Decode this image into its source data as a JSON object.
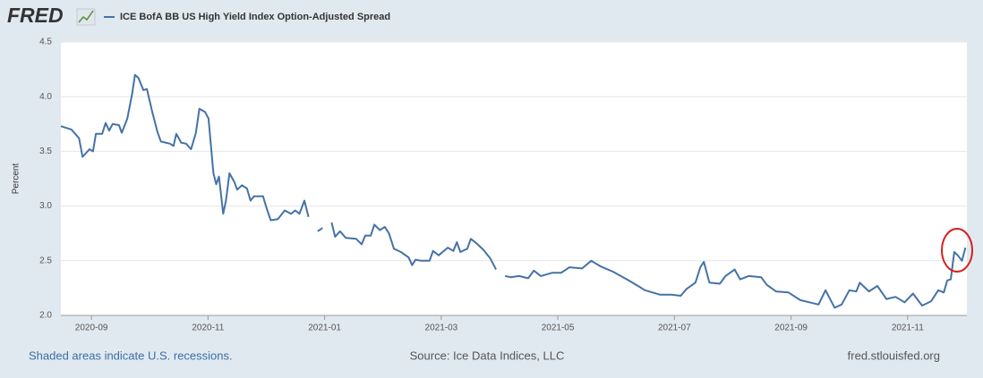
{
  "logo": "FRED",
  "footer": {
    "left": "Shaded areas indicate U.S. recessions.",
    "center": "Source: Ice Data Indices, LLC",
    "right": "fred.stlouisfed.org"
  },
  "chart_data": {
    "type": "line",
    "ylabel": "Percent",
    "xlim": [
      2020.623,
      2021.918
    ],
    "xticks": [
      {
        "value": 2020.6667,
        "label": "2020-09"
      },
      {
        "value": 2020.8333,
        "label": "2020-11"
      },
      {
        "value": 2021.0,
        "label": "2021-01"
      },
      {
        "value": 2021.1667,
        "label": "2021-03"
      },
      {
        "value": 2021.3333,
        "label": "2021-05"
      },
      {
        "value": 2021.5,
        "label": "2021-07"
      },
      {
        "value": 2021.6667,
        "label": "2021-09"
      },
      {
        "value": 2021.8333,
        "label": "2021-11"
      }
    ],
    "ylim": [
      2,
      4.5
    ],
    "yticks": [
      {
        "value": 2,
        "label": "2.0"
      },
      2.5,
      {
        "value": 3,
        "label": "3.0"
      },
      3.5,
      {
        "value": 4,
        "label": "4.0"
      },
      4.5
    ],
    "grid": true,
    "x": [
      2020.623,
      2020.638,
      2020.649,
      2020.654,
      2020.664,
      2020.669,
      2020.673,
      2020.682,
      2020.687,
      2020.692,
      2020.697,
      2020.706,
      2020.71,
      2020.718,
      2020.725,
      2020.729,
      2020.734,
      2020.741,
      2020.746,
      2020.754,
      2020.761,
      2020.766,
      2020.779,
      2020.784,
      2020.788,
      2020.795,
      2020.802,
      2020.809,
      2020.816,
      2020.821,
      2020.829,
      2020.834,
      2020.841,
      2020.845,
      2020.849,
      2020.855,
      2020.859,
      2020.864,
      2020.871,
      2020.875,
      2020.882,
      2020.889,
      2020.894,
      2020.899,
      2020.912,
      2020.917,
      2020.923,
      2020.933,
      2020.943,
      2020.952,
      2020.958,
      2020.964,
      2020.971,
      2020.977,
      null,
      2020.99,
      2020.997,
      null,
      2021.01,
      2021.015,
      2021.022,
      2021.03,
      2021.045,
      2021.053,
      2021.058,
      2021.066,
      2021.071,
      2021.079,
      2021.086,
      2021.092,
      2021.099,
      2021.109,
      2021.12,
      2021.125,
      2021.13,
      2021.138,
      2021.15,
      2021.155,
      2021.163,
      2021.176,
      2021.184,
      2021.189,
      2021.194,
      2021.204,
      2021.209,
      2021.217,
      2021.227,
      2021.237,
      2021.245,
      null,
      2021.258,
      2021.266,
      2021.278,
      2021.291,
      2021.299,
      2021.309,
      2021.325,
      2021.338,
      2021.35,
      2021.368,
      2021.381,
      2021.394,
      2021.412,
      2021.432,
      2021.448,
      2021.458,
      2021.479,
      2021.496,
      2021.509,
      2021.517,
      2021.53,
      2021.537,
      2021.542,
      2021.55,
      2021.565,
      2021.573,
      2021.586,
      2021.594,
      2021.606,
      2021.624,
      2021.632,
      2021.645,
      2021.663,
      2021.68,
      2021.693,
      2021.706,
      2021.716,
      2021.729,
      2021.739,
      2021.75,
      2021.76,
      2021.765,
      2021.778,
      2021.79,
      2021.803,
      2021.816,
      2021.829,
      2021.841,
      2021.854,
      2021.867,
      2021.877,
      2021.885,
      2021.89,
      2021.895,
      2021.9,
      2021.905,
      2021.911,
      2021.916
    ],
    "series": [
      {
        "name": "ICE BofA BB US High Yield Index Option-Adjusted Spread",
        "color": "#4572a7",
        "values": [
          3.73,
          3.7,
          3.62,
          3.45,
          3.52,
          3.5,
          3.66,
          3.66,
          3.76,
          3.69,
          3.75,
          3.74,
          3.67,
          3.8,
          4.03,
          4.2,
          4.17,
          4.06,
          4.07,
          3.85,
          3.68,
          3.59,
          3.57,
          3.55,
          3.66,
          3.58,
          3.57,
          3.52,
          3.67,
          3.89,
          3.86,
          3.8,
          3.3,
          3.2,
          3.27,
          2.93,
          3.05,
          3.3,
          3.22,
          3.15,
          3.19,
          3.16,
          3.05,
          3.09,
          3.09,
          2.98,
          2.87,
          2.88,
          2.96,
          2.93,
          2.96,
          2.93,
          3.05,
          2.9,
          null,
          2.77,
          2.8,
          null,
          2.85,
          2.72,
          2.77,
          2.71,
          2.7,
          2.65,
          2.73,
          2.73,
          2.83,
          2.78,
          2.81,
          2.75,
          2.61,
          2.58,
          2.53,
          2.46,
          2.51,
          2.5,
          2.5,
          2.59,
          2.55,
          2.62,
          2.59,
          2.67,
          2.58,
          2.61,
          2.7,
          2.66,
          2.6,
          2.52,
          2.42,
          null,
          2.36,
          2.35,
          2.36,
          2.34,
          2.41,
          2.36,
          2.39,
          2.39,
          2.44,
          2.43,
          2.5,
          2.45,
          2.4,
          2.33,
          2.27,
          2.23,
          2.19,
          2.19,
          2.18,
          2.24,
          2.3,
          2.44,
          2.49,
          2.3,
          2.29,
          2.36,
          2.42,
          2.33,
          2.36,
          2.35,
          2.28,
          2.22,
          2.21,
          2.14,
          2.12,
          2.1,
          2.23,
          2.07,
          2.1,
          2.23,
          2.22,
          2.3,
          2.22,
          2.27,
          2.15,
          2.17,
          2.12,
          2.2,
          2.09,
          2.13,
          2.23,
          2.21,
          2.32,
          2.33,
          2.58,
          2.55,
          2.5,
          2.62
        ]
      }
    ]
  }
}
